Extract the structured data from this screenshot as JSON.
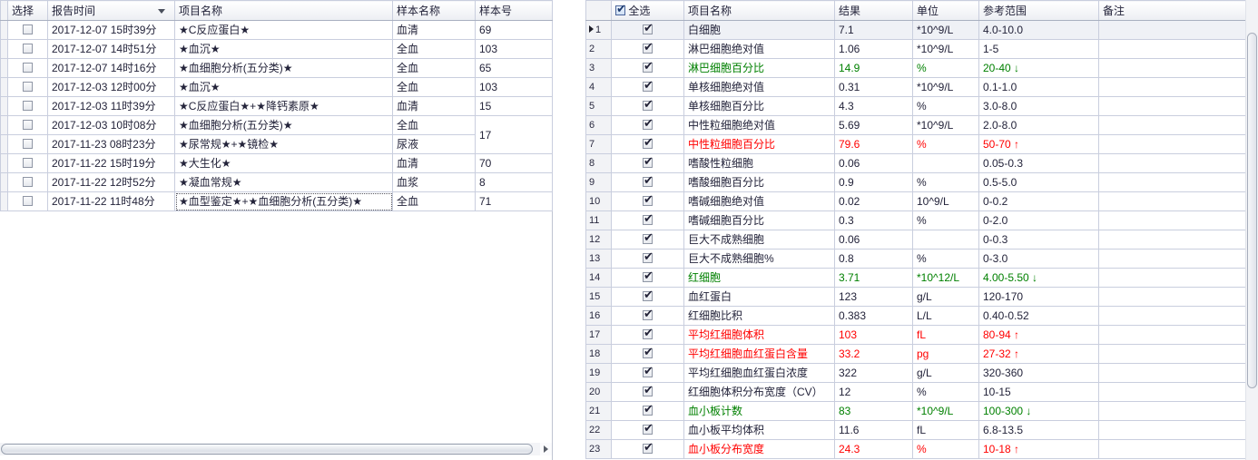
{
  "colors": {
    "low_green": "#008000",
    "high_red": "#ff0000",
    "grid_line": "#c9cede",
    "selected_row_bg": "#eff1f6"
  },
  "left_table": {
    "columns": {
      "select": "选择",
      "report_time": "报告时间",
      "item_name": "项目名称",
      "sample_name": "样本名称",
      "sample_no": "样本号"
    },
    "rows": [
      {
        "time": "2017-12-07 15时39分",
        "item": "★C反应蛋白★",
        "sample": "血清",
        "no": "69",
        "checked": false
      },
      {
        "time": "2017-12-07 14时51分",
        "item": "★血沉★",
        "sample": "全血",
        "no": "103",
        "checked": false
      },
      {
        "time": "2017-12-07 14时16分",
        "item": "★血细胞分析(五分类)★",
        "sample": "全血",
        "no": "65",
        "checked": false
      },
      {
        "time": "2017-12-03 12时00分",
        "item": "★血沉★",
        "sample": "全血",
        "no": "103",
        "checked": false
      },
      {
        "time": "2017-12-03 11时39分",
        "item": "★C反应蛋白★+★降钙素原★",
        "sample": "血清",
        "no": "15",
        "checked": false
      },
      {
        "time": "2017-12-03 10时08分",
        "item": "★血细胞分析(五分类)★",
        "sample": "全血",
        "no": "17",
        "checked": false,
        "no_rowspan": 2
      },
      {
        "time": "2017-11-23 08时23分",
        "item": "★尿常规★+★镜检★",
        "sample": "尿液",
        "no": null,
        "checked": false
      },
      {
        "time": "2017-11-22 15时19分",
        "item": "★大生化★",
        "sample": "血清",
        "no": "70",
        "checked": false
      },
      {
        "time": "2017-11-22 12时52分",
        "item": "★凝血常规★",
        "sample": "血浆",
        "no": "8",
        "checked": false
      },
      {
        "time": "2017-11-22 11时48分",
        "item": "★血型鉴定★+★血细胞分析(五分类)★",
        "sample": "全血",
        "no": "71",
        "checked": false,
        "focused": true
      }
    ]
  },
  "right_table": {
    "select_all_label": "全选",
    "select_all_checked": true,
    "columns": {
      "item_name": "项目名称",
      "result": "结果",
      "unit": "单位",
      "range": "参考范围",
      "note": "备注"
    },
    "flag_up": "↑",
    "flag_down": "↓",
    "rows": [
      {
        "no": "1",
        "name": "白细胞",
        "result": "7.1",
        "unit": "*10^9/L",
        "range": "4.0-10.0",
        "flag": "",
        "status": "normal",
        "checked": true,
        "selected": true
      },
      {
        "no": "2",
        "name": "淋巴细胞绝对值",
        "result": "1.06",
        "unit": "*10^9/L",
        "range": "1-5",
        "flag": "",
        "status": "normal",
        "checked": true
      },
      {
        "no": "3",
        "name": "淋巴细胞百分比",
        "result": "14.9",
        "unit": "%",
        "range": "20-40",
        "flag": "down",
        "status": "low",
        "checked": true
      },
      {
        "no": "4",
        "name": "单核细胞绝对值",
        "result": "0.31",
        "unit": "*10^9/L",
        "range": "0.1-1.0",
        "flag": "",
        "status": "normal",
        "checked": true
      },
      {
        "no": "5",
        "name": "单核细胞百分比",
        "result": "4.3",
        "unit": "%",
        "range": "3.0-8.0",
        "flag": "",
        "status": "normal",
        "checked": true
      },
      {
        "no": "6",
        "name": "中性粒细胞绝对值",
        "result": "5.69",
        "unit": "*10^9/L",
        "range": "2.0-8.0",
        "flag": "",
        "status": "normal",
        "checked": true
      },
      {
        "no": "7",
        "name": "中性粒细胞百分比",
        "result": "79.6",
        "unit": "%",
        "range": "50-70",
        "flag": "up",
        "status": "high",
        "checked": true
      },
      {
        "no": "8",
        "name": "嗜酸性粒细胞",
        "result": "0.06",
        "unit": "",
        "range": "0.05-0.3",
        "flag": "",
        "status": "normal",
        "checked": true
      },
      {
        "no": "9",
        "name": "嗜酸细胞百分比",
        "result": "0.9",
        "unit": "%",
        "range": "0.5-5.0",
        "flag": "",
        "status": "normal",
        "checked": true
      },
      {
        "no": "10",
        "name": "嗜碱细胞绝对值",
        "result": "0.02",
        "unit": "10^9/L",
        "range": "0-0.2",
        "flag": "",
        "status": "normal",
        "checked": true
      },
      {
        "no": "11",
        "name": "嗜碱细胞百分比",
        "result": "0.3",
        "unit": "%",
        "range": "0-2.0",
        "flag": "",
        "status": "normal",
        "checked": true
      },
      {
        "no": "12",
        "name": "巨大不成熟细胞",
        "result": "0.06",
        "unit": "",
        "range": "0-0.3",
        "flag": "",
        "status": "normal",
        "checked": true
      },
      {
        "no": "13",
        "name": "巨大不成熟细胞%",
        "result": "0.8",
        "unit": "%",
        "range": "0-3.0",
        "flag": "",
        "status": "normal",
        "checked": true
      },
      {
        "no": "14",
        "name": "红细胞",
        "result": "3.71",
        "unit": "*10^12/L",
        "range": "4.00-5.50",
        "flag": "down",
        "status": "low",
        "checked": true
      },
      {
        "no": "15",
        "name": "血红蛋白",
        "result": "123",
        "unit": "g/L",
        "range": "120-170",
        "flag": "",
        "status": "normal",
        "checked": true
      },
      {
        "no": "16",
        "name": "红细胞比积",
        "result": "0.383",
        "unit": "L/L",
        "range": "0.40-0.52",
        "flag": "",
        "status": "normal",
        "checked": true
      },
      {
        "no": "17",
        "name": "平均红细胞体积",
        "result": "103",
        "unit": "fL",
        "range": "80-94",
        "flag": "up",
        "status": "high",
        "checked": true
      },
      {
        "no": "18",
        "name": "平均红细胞血红蛋白含量",
        "result": "33.2",
        "unit": "pg",
        "range": "27-32",
        "flag": "up",
        "status": "high",
        "checked": true
      },
      {
        "no": "19",
        "name": "平均红细胞血红蛋白浓度",
        "result": "322",
        "unit": "g/L",
        "range": "320-360",
        "flag": "",
        "status": "normal",
        "checked": true
      },
      {
        "no": "20",
        "name": "红细胞体积分布宽度（CV）",
        "result": "12",
        "unit": "%",
        "range": "10-15",
        "flag": "",
        "status": "normal",
        "checked": true
      },
      {
        "no": "21",
        "name": "血小板计数",
        "result": "83",
        "unit": "*10^9/L",
        "range": "100-300",
        "flag": "down",
        "status": "low",
        "checked": true
      },
      {
        "no": "22",
        "name": "血小板平均体积",
        "result": "11.6",
        "unit": "fL",
        "range": "6.8-13.5",
        "flag": "",
        "status": "normal",
        "checked": true
      },
      {
        "no": "23",
        "name": "血小板分布宽度",
        "result": "24.3",
        "unit": "%",
        "range": "10-18",
        "flag": "up",
        "status": "high",
        "checked": true
      }
    ]
  }
}
